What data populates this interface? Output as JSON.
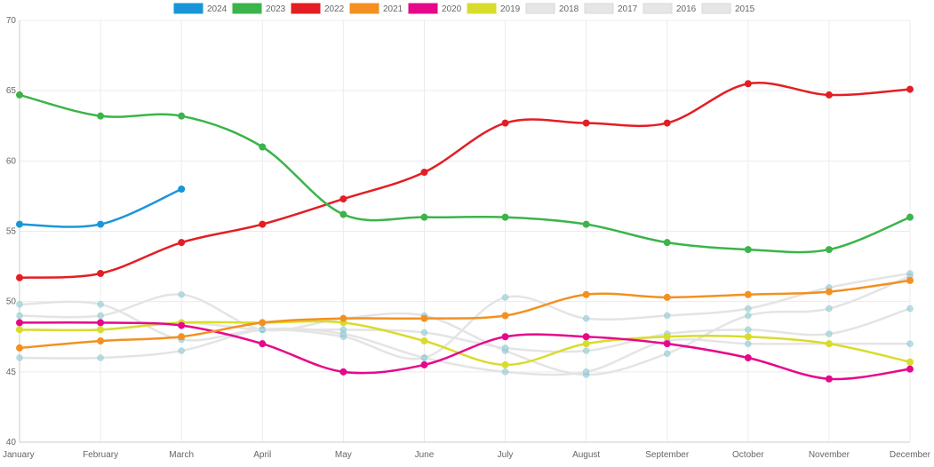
{
  "chart_data": {
    "type": "line",
    "categories": [
      "January",
      "February",
      "March",
      "April",
      "May",
      "June",
      "July",
      "August",
      "September",
      "October",
      "November",
      "December"
    ],
    "ylim": [
      40,
      70
    ],
    "yticks": [
      40,
      45,
      50,
      55,
      60,
      65,
      70
    ],
    "grid": true,
    "legend_position": "top",
    "series": [
      {
        "name": "2024",
        "color": "#1a96d8",
        "active": true,
        "values": [
          55.5,
          55.5,
          58,
          null,
          null,
          null,
          null,
          null,
          null,
          null,
          null,
          null
        ]
      },
      {
        "name": "2023",
        "color": "#3bb44a",
        "active": true,
        "values": [
          64.7,
          63.2,
          63.2,
          61,
          56.2,
          56,
          56,
          55.5,
          54.2,
          53.7,
          53.7,
          56
        ]
      },
      {
        "name": "2022",
        "color": "#e31e24",
        "active": true,
        "values": [
          51.7,
          52,
          54.2,
          55.5,
          57.3,
          59.2,
          62.7,
          62.7,
          62.7,
          65.5,
          64.7,
          65.1
        ]
      },
      {
        "name": "2021",
        "color": "#f39021",
        "active": true,
        "values": [
          46.7,
          47.2,
          47.5,
          48.5,
          48.8,
          48.8,
          49,
          50.5,
          50.3,
          50.5,
          50.7,
          51.5
        ]
      },
      {
        "name": "2020",
        "color": "#e6088b",
        "active": true,
        "values": [
          48.5,
          48.5,
          48.3,
          47,
          45,
          45.5,
          47.5,
          47.5,
          47,
          46,
          44.5,
          45.2
        ]
      },
      {
        "name": "2019",
        "color": "#d8dc2c",
        "active": true,
        "values": [
          48,
          48,
          48.5,
          48.5,
          48.5,
          47.2,
          45.5,
          47,
          47.5,
          47.5,
          47,
          45.7
        ]
      },
      {
        "name": "2018",
        "color": "#e4e4e4",
        "active": false,
        "values": [
          49.8,
          49.8,
          47.3,
          48,
          47.5,
          46,
          50.3,
          48.8,
          49,
          49.5,
          51,
          52
        ]
      },
      {
        "name": "2017",
        "color": "#e4e4e4",
        "active": false,
        "values": [
          49,
          49,
          50.5,
          48,
          48.8,
          49,
          46.5,
          44.8,
          46.3,
          49,
          49.5,
          51.8
        ]
      },
      {
        "name": "2016",
        "color": "#e4e4e4",
        "active": false,
        "values": [
          48,
          48,
          48.5,
          48,
          48,
          47.8,
          46.7,
          46.5,
          47.7,
          48,
          47.7,
          49.5
        ]
      },
      {
        "name": "2015",
        "color": "#e4e4e4",
        "active": false,
        "values": [
          46,
          46,
          46.5,
          48,
          47.7,
          46,
          45,
          45,
          47.2,
          47,
          47,
          47
        ]
      }
    ]
  }
}
